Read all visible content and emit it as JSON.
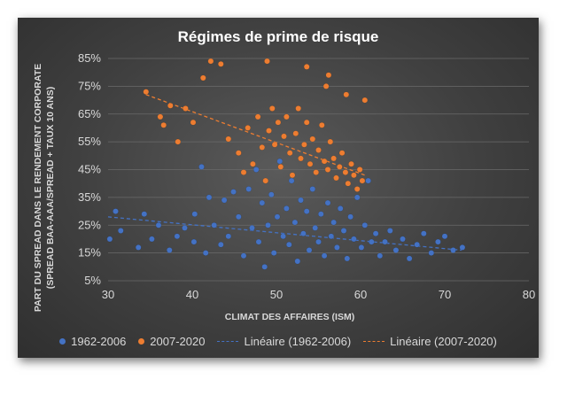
{
  "chart_data": {
    "type": "scatter",
    "title": "Régimes de prime de risque",
    "xlabel": "CLIMAT DES AFFAIRES (ISM)",
    "ylabel_line1": "PART DU SPREAD DANS LE RENDEMENT CORPORATE",
    "ylabel_line2": "(SPREAD BAA-AAA/SPREAD + TAUX 10 ANS)",
    "xlim": [
      30,
      80
    ],
    "ylim": [
      0.05,
      0.85
    ],
    "x_ticks": [
      30,
      40,
      50,
      60,
      70,
      80
    ],
    "y_ticks": [
      0.05,
      0.15,
      0.25,
      0.35,
      0.45,
      0.55,
      0.65,
      0.75,
      0.85
    ],
    "x_tick_labels": [
      "30",
      "40",
      "50",
      "60",
      "70",
      "80"
    ],
    "y_tick_labels": [
      "5%",
      "15%",
      "25%",
      "35%",
      "45%",
      "55%",
      "65%",
      "75%",
      "85%"
    ],
    "grid": "horizontal",
    "legend_position": "bottom",
    "series": [
      {
        "name": "1962-2006",
        "color": "#4472c4",
        "points": [
          [
            30.2,
            0.2
          ],
          [
            30.9,
            0.3
          ],
          [
            31.5,
            0.23
          ],
          [
            33.6,
            0.17
          ],
          [
            34.3,
            0.29
          ],
          [
            35.2,
            0.2
          ],
          [
            36,
            0.25
          ],
          [
            37.3,
            0.16
          ],
          [
            38.2,
            0.21
          ],
          [
            39.1,
            0.24
          ],
          [
            40.2,
            0.19
          ],
          [
            40.3,
            0.29
          ],
          [
            41.1,
            0.46
          ],
          [
            41.6,
            0.15
          ],
          [
            42,
            0.35
          ],
          [
            42.6,
            0.25
          ],
          [
            43.4,
            0.18
          ],
          [
            43.8,
            0.34
          ],
          [
            44.3,
            0.21
          ],
          [
            44.9,
            0.37
          ],
          [
            45.5,
            0.28
          ],
          [
            46.1,
            0.14
          ],
          [
            46.7,
            0.38
          ],
          [
            47.1,
            0.24
          ],
          [
            47.6,
            0.45
          ],
          [
            47.9,
            0.19
          ],
          [
            48.3,
            0.33
          ],
          [
            48.6,
            0.1
          ],
          [
            49,
            0.25
          ],
          [
            49.4,
            0.36
          ],
          [
            49.7,
            0.15
          ],
          [
            50.1,
            0.28
          ],
          [
            50.4,
            0.48
          ],
          [
            50.8,
            0.21
          ],
          [
            51.2,
            0.31
          ],
          [
            51.5,
            0.18
          ],
          [
            51.8,
            0.41
          ],
          [
            52.2,
            0.26
          ],
          [
            52.5,
            0.12
          ],
          [
            52.9,
            0.34
          ],
          [
            53.2,
            0.22
          ],
          [
            53.6,
            0.3
          ],
          [
            53.9,
            0.16
          ],
          [
            54.3,
            0.38
          ],
          [
            54.6,
            0.24
          ],
          [
            55,
            0.19
          ],
          [
            55.3,
            0.29
          ],
          [
            55.7,
            0.14
          ],
          [
            56.1,
            0.33
          ],
          [
            56.5,
            0.21
          ],
          [
            56.8,
            0.26
          ],
          [
            57.2,
            0.17
          ],
          [
            57.6,
            0.31
          ],
          [
            58,
            0.23
          ],
          [
            58.4,
            0.13
          ],
          [
            58.8,
            0.28
          ],
          [
            59.2,
            0.2
          ],
          [
            59.6,
            0.35
          ],
          [
            60.1,
            0.17
          ],
          [
            60.5,
            0.25
          ],
          [
            60.9,
            0.41
          ],
          [
            61.3,
            0.19
          ],
          [
            61.8,
            0.22
          ],
          [
            62.3,
            0.14
          ],
          [
            62.9,
            0.19
          ],
          [
            63.5,
            0.23
          ],
          [
            64.2,
            0.16
          ],
          [
            65,
            0.2
          ],
          [
            65.8,
            0.13
          ],
          [
            66.7,
            0.18
          ],
          [
            67.5,
            0.22
          ],
          [
            68.4,
            0.15
          ],
          [
            69.2,
            0.19
          ],
          [
            70,
            0.21
          ],
          [
            71,
            0.16
          ],
          [
            72.1,
            0.17
          ]
        ]
      },
      {
        "name": "2007-2020",
        "color": "#ed7d31",
        "points": [
          [
            34.5,
            0.73
          ],
          [
            36.2,
            0.64
          ],
          [
            36.6,
            0.61
          ],
          [
            37.4,
            0.68
          ],
          [
            38.3,
            0.55
          ],
          [
            39.2,
            0.67
          ],
          [
            40.1,
            0.62
          ],
          [
            41.3,
            0.78
          ],
          [
            42.2,
            0.84
          ],
          [
            43.4,
            0.83
          ],
          [
            44.3,
            0.56
          ],
          [
            45.5,
            0.51
          ],
          [
            46.1,
            0.44
          ],
          [
            46.6,
            0.6
          ],
          [
            47.2,
            0.47
          ],
          [
            47.8,
            0.64
          ],
          [
            48.3,
            0.53
          ],
          [
            48.7,
            0.41
          ],
          [
            49.1,
            0.59
          ],
          [
            49.5,
            0.67
          ],
          [
            49.8,
            0.54
          ],
          [
            50.2,
            0.62
          ],
          [
            50.5,
            0.46
          ],
          [
            50.9,
            0.57
          ],
          [
            51.2,
            0.64
          ],
          [
            51.6,
            0.51
          ],
          [
            51.9,
            0.43
          ],
          [
            52.3,
            0.58
          ],
          [
            52.6,
            0.67
          ],
          [
            52.9,
            0.49
          ],
          [
            53.3,
            0.54
          ],
          [
            53.6,
            0.62
          ],
          [
            54,
            0.47
          ],
          [
            54.3,
            0.56
          ],
          [
            54.7,
            0.44
          ],
          [
            55,
            0.52
          ],
          [
            55.4,
            0.61
          ],
          [
            55.7,
            0.48
          ],
          [
            56.1,
            0.45
          ],
          [
            56.4,
            0.55
          ],
          [
            56.8,
            0.49
          ],
          [
            57.1,
            0.42
          ],
          [
            57.5,
            0.46
          ],
          [
            57.8,
            0.51
          ],
          [
            58.2,
            0.44
          ],
          [
            58.5,
            0.4
          ],
          [
            58.9,
            0.47
          ],
          [
            59.2,
            0.43
          ],
          [
            59.6,
            0.38
          ],
          [
            59.9,
            0.45
          ],
          [
            60.2,
            0.41
          ],
          [
            60.5,
            0.7
          ],
          [
            53.6,
            0.82
          ],
          [
            56.2,
            0.79
          ],
          [
            58.3,
            0.72
          ],
          [
            48.9,
            0.84
          ],
          [
            55.9,
            0.75
          ]
        ]
      }
    ],
    "trendlines": [
      {
        "name": "Linéaire (1962-2006)",
        "color": "#4472c4",
        "x": [
          30,
          72
        ],
        "y": [
          0.28,
          0.16
        ]
      },
      {
        "name": "Linéaire (2007-2020)",
        "color": "#ed7d31",
        "x": [
          34.5,
          60.5
        ],
        "y": [
          0.72,
          0.43
        ]
      }
    ]
  }
}
